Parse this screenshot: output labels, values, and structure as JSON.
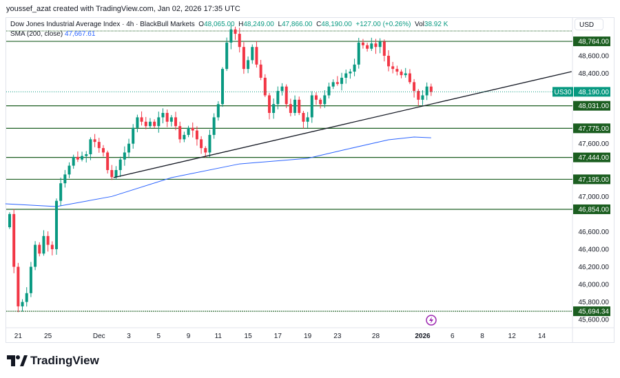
{
  "credit": "youssef_azat created with TradingView.com, Jan 02, 2026 17:35 UTC",
  "legend": {
    "symbol": "Dow Jones Industrial Average Index · 4h · BlackBull Markets",
    "o_label": "O",
    "o": "48,065.00",
    "h_label": "H",
    "h": "48,249.00",
    "l_label": "L",
    "l": "47,866.00",
    "c_label": "C",
    "c": "48,190.00",
    "chg": "+127.00 (+0.26%)",
    "vol_label": "Vol",
    "vol": "38.92 K"
  },
  "sma": {
    "label": "SMA (200, close)",
    "value": "47,667.61"
  },
  "currency": "USD",
  "logo": "TradingView",
  "colors": {
    "up": "#089981",
    "down": "#f23645",
    "level": "#1b5e20",
    "sma": "#2962ff",
    "trend": "#131722"
  },
  "chart_data": {
    "type": "candlestick",
    "timeframe": "4h",
    "ylim": [
      45560,
      48960
    ],
    "y_ticks": [
      "48,600.00",
      "48,400.00",
      "47,600.00",
      "47,000.00",
      "46,600.00",
      "46,400.00",
      "46,200.00",
      "46,000.00",
      "45,800.00",
      "45,600.00"
    ],
    "y_tick_values": [
      48600,
      48400,
      47600,
      47000,
      46600,
      46400,
      46200,
      46000,
      45800,
      45600
    ],
    "x_ticks": [
      "21",
      "25",
      "Dec",
      "3",
      "5",
      "9",
      "11",
      "15",
      "17",
      "19",
      "23",
      "28",
      "2026",
      "6",
      "8",
      "12",
      "14"
    ],
    "x_tick_index": [
      2,
      9,
      21,
      28,
      35,
      42,
      49,
      56,
      63,
      70,
      77,
      86,
      97,
      104,
      111,
      118,
      125
    ],
    "start_open": 46650,
    "closes": [
      46800,
      46200,
      45750,
      45800,
      45900,
      46200,
      46450,
      46350,
      46550,
      46450,
      46400,
      46950,
      47150,
      47250,
      47350,
      47450,
      47420,
      47460,
      47480,
      47650,
      47620,
      47550,
      47500,
      47300,
      47220,
      47300,
      47420,
      47500,
      47600,
      47780,
      47900,
      47850,
      47800,
      47850,
      47800,
      47900,
      47950,
      47850,
      47900,
      47800,
      47650,
      47700,
      47780,
      47750,
      47650,
      47550,
      47500,
      47700,
      47900,
      48050,
      48450,
      48750,
      48900,
      48850,
      48700,
      48450,
      48550,
      48700,
      48500,
      48350,
      48150,
      47950,
      48050,
      48200,
      48250,
      48050,
      47950,
      48100,
      47950,
      47850,
      47900,
      48150,
      48100,
      48050,
      48150,
      48250,
      48300,
      48280,
      48350,
      48400,
      48420,
      48500,
      48750,
      48720,
      48680,
      48740,
      48700,
      48760,
      48600,
      48480,
      48450,
      48420,
      48380,
      48400,
      48300,
      48200,
      48100,
      48150,
      48250,
      48190
    ],
    "sma_200": {
      "index": [
        -1,
        11,
        24,
        38,
        54,
        70,
        79,
        89,
        95,
        99
      ],
      "values": [
        46916,
        46885,
        47000,
        47214,
        47370,
        47433,
        47535,
        47645,
        47676,
        47667
      ]
    },
    "trendline": {
      "index": [
        24.4,
        132
      ],
      "values": [
        47214,
        48420
      ]
    },
    "levels": [
      {
        "value": 48764,
        "label": "48,764.00"
      },
      {
        "value": 48031,
        "label": "48,031.00"
      },
      {
        "value": 47775,
        "label": "47,775.00"
      },
      {
        "value": 47444,
        "label": "47,444.00"
      },
      {
        "value": 47195,
        "label": "47,195.00"
      },
      {
        "value": 46854,
        "label": "46,854.00"
      },
      {
        "value": 45694.34,
        "label": "45,694.34"
      }
    ],
    "top_dotted_level": 48882,
    "last_price": {
      "symbol": "US30",
      "value": 48190,
      "label": "48,190.00"
    }
  }
}
